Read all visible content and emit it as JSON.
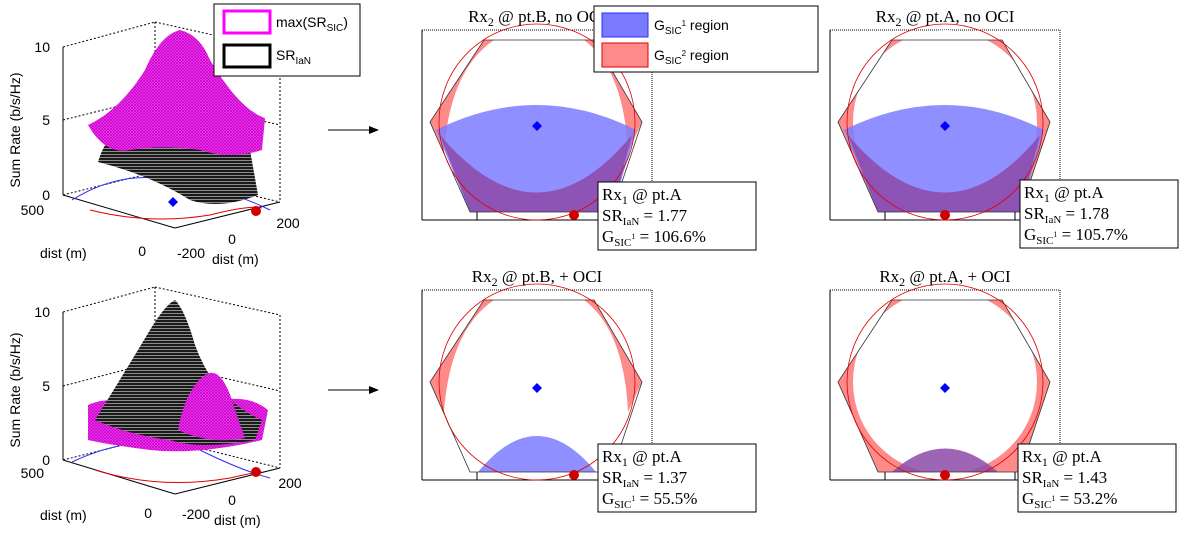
{
  "colors": {
    "max_sr_sic": "#ff00ff",
    "sr_ian": "#000000",
    "g_sic1_region": "#7b7bff",
    "g_sic2_region": "#ff8a8a",
    "overlap": "#8d4aa8",
    "circle_blue": "#2b2bff",
    "circle_red": "#e00000",
    "point_a": "#d00000",
    "point_b": "#0000ff"
  },
  "surface_plots": [
    {
      "id": "top",
      "zlabel": "Sum Rate (b/s/Hz)",
      "z_ticks": [
        "0",
        "5",
        "10"
      ],
      "x_label": "dist (m)",
      "x_ticks": [
        "-200",
        "0",
        "200"
      ],
      "y_label": "dist (m)",
      "y_ticks": [
        "0",
        "500"
      ]
    },
    {
      "id": "bottom",
      "zlabel": "Sum Rate (b/s/Hz)",
      "z_ticks": [
        "0",
        "5",
        "10"
      ],
      "x_label": "dist (m)",
      "x_ticks": [
        "-200",
        "0",
        "200"
      ],
      "y_label": "dist (m)",
      "y_ticks": [
        "0",
        "500"
      ]
    }
  ],
  "surface_legend": {
    "max_label": "max(SR",
    "max_sub": "SIC",
    "max_close": ")",
    "ian_label": "SR",
    "ian_sub": "IaN"
  },
  "region_legend": {
    "g_prefix": "G",
    "sic_sub": "SIC",
    "sic1_sup": "1",
    "sic2_sup": "2",
    "suffix": " region"
  },
  "chart_data": [
    {
      "type": "region-map",
      "title_rx": "Rx",
      "title_sub": "2",
      "title_rest": " @ pt.B, no OCI",
      "info_line1": "Rx",
      "info_line1_sub": "1",
      "info_line1_rest": " @ pt.A",
      "sr_ian": "1.77",
      "g_sic1": "106.6%"
    },
    {
      "type": "region-map",
      "title_rx": "Rx",
      "title_sub": "2",
      "title_rest": " @ pt.A, no OCI",
      "info_line1": "Rx",
      "info_line1_sub": "1",
      "info_line1_rest": " @ pt.A",
      "sr_ian": "1.78",
      "g_sic1": "105.7%"
    },
    {
      "type": "region-map",
      "title_rx": "Rx",
      "title_sub": "2",
      "title_rest": " @ pt.B, + OCI",
      "info_line1": "Rx",
      "info_line1_sub": "1",
      "info_line1_rest": " @ pt.A",
      "sr_ian": "1.37",
      "g_sic1": "55.5%"
    },
    {
      "type": "region-map",
      "title_rx": "Rx",
      "title_sub": "2",
      "title_rest": " @ pt.A, + OCI",
      "info_line1": "Rx",
      "info_line1_sub": "1",
      "info_line1_rest": " @ pt.A",
      "sr_ian": "1.43",
      "g_sic1": "53.2%"
    }
  ]
}
